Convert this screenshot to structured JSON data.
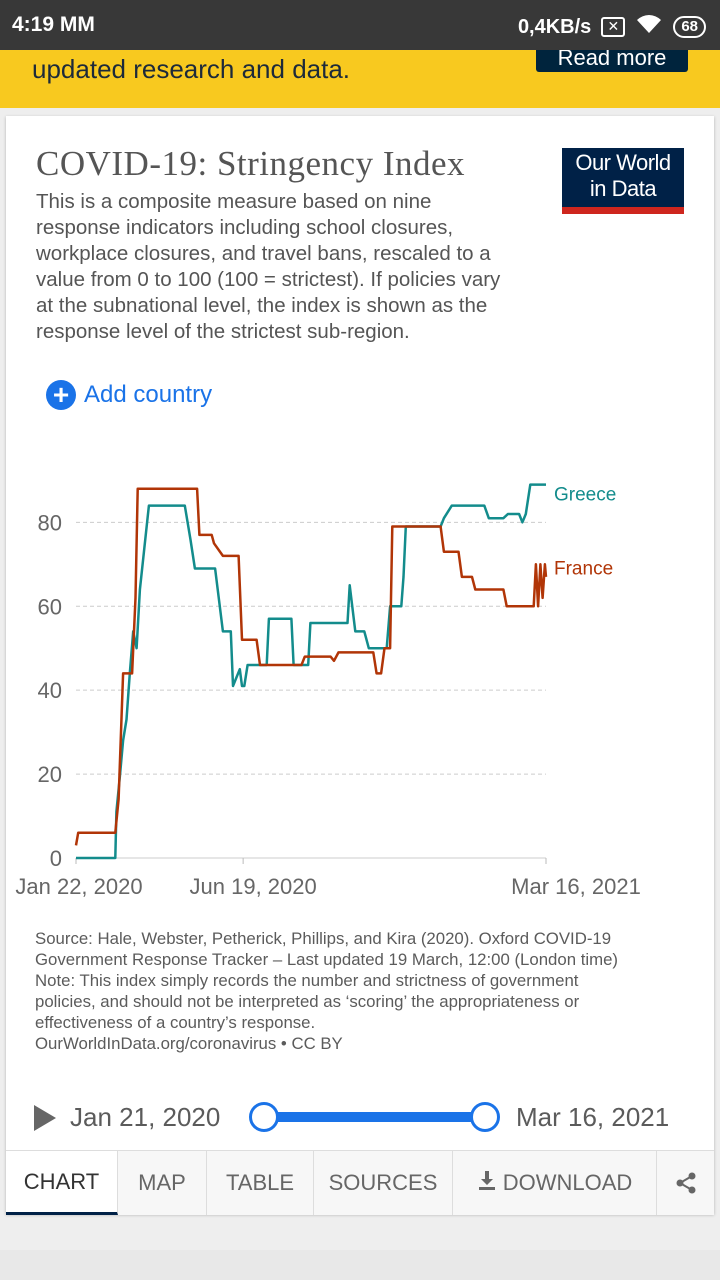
{
  "status_bar": {
    "time": "4:19 MM",
    "speed": "0,4KB/s",
    "battery": "68"
  },
  "banner": {
    "text": "updated research and data.",
    "button_label": "Read more"
  },
  "card": {
    "title": "COVID-19: Stringency Index",
    "subtitle": "This is a composite measure based on nine response indicators including school closures, workplace closures, and travel bans, rescaled to a value from 0 to 100 (100 = strictest). If policies vary at the subnational level, the index is shown as the response level of the strictest sub-region.",
    "logo_line1": "Our World",
    "logo_line2": "in Data",
    "add_country_label": "Add country"
  },
  "chart_data": {
    "type": "line",
    "xlabel": "",
    "ylabel": "",
    "x_ticks": [
      "Jan 22, 2020",
      "Jun 19, 2020",
      "Mar 16, 2021"
    ],
    "y_ticks": [
      0,
      20,
      40,
      60,
      80
    ],
    "ylim": [
      0,
      92
    ],
    "grid": "horizontal dashed",
    "series": [
      {
        "name": "Greece",
        "color": "#138c8c",
        "points": [
          [
            "2020-01-22",
            0
          ],
          [
            "2020-02-26",
            0
          ],
          [
            "2020-02-27",
            11
          ],
          [
            "2020-03-01",
            19
          ],
          [
            "2020-03-04",
            28
          ],
          [
            "2020-03-07",
            33
          ],
          [
            "2020-03-10",
            44
          ],
          [
            "2020-03-13",
            54
          ],
          [
            "2020-03-16",
            50
          ],
          [
            "2020-03-19",
            64
          ],
          [
            "2020-03-23",
            74
          ],
          [
            "2020-03-27",
            84
          ],
          [
            "2020-04-28",
            84
          ],
          [
            "2020-05-03",
            76
          ],
          [
            "2020-05-07",
            69
          ],
          [
            "2020-05-25",
            69
          ],
          [
            "2020-06-01",
            54
          ],
          [
            "2020-06-08",
            54
          ],
          [
            "2020-06-10",
            41
          ],
          [
            "2020-06-16",
            45
          ],
          [
            "2020-06-18",
            41
          ],
          [
            "2020-06-20",
            41
          ],
          [
            "2020-06-23",
            46
          ],
          [
            "2020-07-10",
            46
          ],
          [
            "2020-07-12",
            57
          ],
          [
            "2020-08-01",
            57
          ],
          [
            "2020-08-03",
            46
          ],
          [
            "2020-08-16",
            46
          ],
          [
            "2020-08-18",
            56
          ],
          [
            "2020-09-20",
            56
          ],
          [
            "2020-09-22",
            65
          ],
          [
            "2020-09-27",
            54
          ],
          [
            "2020-10-05",
            54
          ],
          [
            "2020-10-09",
            50
          ],
          [
            "2020-10-25",
            50
          ],
          [
            "2020-10-28",
            60
          ],
          [
            "2020-11-07",
            60
          ],
          [
            "2020-11-09",
            67
          ],
          [
            "2020-11-11",
            79
          ],
          [
            "2020-12-12",
            79
          ],
          [
            "2020-12-15",
            81
          ],
          [
            "2020-12-22",
            84
          ],
          [
            "2021-01-20",
            84
          ],
          [
            "2021-01-24",
            81
          ],
          [
            "2021-02-06",
            81
          ],
          [
            "2021-02-10",
            82
          ],
          [
            "2021-02-20",
            82
          ],
          [
            "2021-02-23",
            80
          ],
          [
            "2021-02-26",
            82
          ],
          [
            "2021-03-02",
            89
          ],
          [
            "2021-03-16",
            89
          ]
        ]
      },
      {
        "name": "France",
        "color": "#b13507",
        "points": [
          [
            "2020-01-22",
            3
          ],
          [
            "2020-01-24",
            6
          ],
          [
            "2020-02-26",
            6
          ],
          [
            "2020-02-29",
            14
          ],
          [
            "2020-03-04",
            44
          ],
          [
            "2020-03-12",
            44
          ],
          [
            "2020-03-15",
            62
          ],
          [
            "2020-03-17",
            88
          ],
          [
            "2020-05-09",
            88
          ],
          [
            "2020-05-11",
            77
          ],
          [
            "2020-05-22",
            77
          ],
          [
            "2020-05-24",
            75
          ],
          [
            "2020-06-01",
            72
          ],
          [
            "2020-06-15",
            72
          ],
          [
            "2020-06-18",
            52
          ],
          [
            "2020-07-01",
            52
          ],
          [
            "2020-07-04",
            46
          ],
          [
            "2020-08-10",
            46
          ],
          [
            "2020-08-13",
            48
          ],
          [
            "2020-09-05",
            48
          ],
          [
            "2020-09-08",
            47
          ],
          [
            "2020-09-12",
            49
          ],
          [
            "2020-10-13",
            49
          ],
          [
            "2020-10-16",
            44
          ],
          [
            "2020-10-20",
            44
          ],
          [
            "2020-10-23",
            50
          ],
          [
            "2020-10-28",
            50
          ],
          [
            "2020-10-30",
            79
          ],
          [
            "2020-12-12",
            79
          ],
          [
            "2020-12-15",
            73
          ],
          [
            "2020-12-28",
            73
          ],
          [
            "2020-12-31",
            67
          ],
          [
            "2021-01-09",
            67
          ],
          [
            "2021-01-12",
            64
          ],
          [
            "2021-02-06",
            64
          ],
          [
            "2021-02-09",
            60
          ],
          [
            "2021-03-05",
            60
          ],
          [
            "2021-03-07",
            70
          ],
          [
            "2021-03-09",
            60
          ],
          [
            "2021-03-11",
            70
          ],
          [
            "2021-03-13",
            62
          ],
          [
            "2021-03-15",
            70
          ],
          [
            "2021-03-16",
            67
          ]
        ]
      }
    ]
  },
  "footnote": {
    "source": "Source: Hale, Webster, Petherick, Phillips, and Kira (2020). Oxford COVID-19 Government Response Tracker – Last updated 19 March, 12:00 (London time)",
    "note": "Note: This index simply records the number and strictness of government policies, and should not be interpreted as ‘scoring’ the appropriateness or effectiveness of a country’s response.",
    "credit": "OurWorldInData.org/coronavirus • CC BY"
  },
  "timeline": {
    "start": "Jan 21, 2020",
    "end": "Mar 16, 2021"
  },
  "tabs": [
    {
      "label": "CHART"
    },
    {
      "label": "MAP"
    },
    {
      "label": "TABLE"
    },
    {
      "label": "SOURCES"
    },
    {
      "label": "DOWNLOAD"
    }
  ]
}
